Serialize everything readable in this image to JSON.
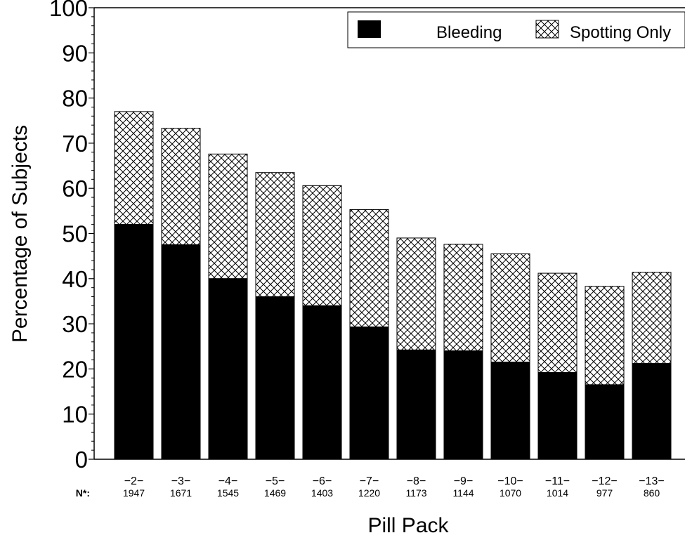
{
  "chart_data": {
    "type": "bar",
    "stacked": true,
    "title": "",
    "xlabel": "Pill Pack",
    "ylabel": "Percentage of Subjects",
    "ylim": [
      0,
      100
    ],
    "yticks": [
      "0",
      "10",
      "20",
      "30",
      "40",
      "50",
      "60",
      "70",
      "80",
      "90",
      "100"
    ],
    "n_label": "N*:",
    "categories": [
      "−2−",
      "−3−",
      "−4−",
      "−5−",
      "−6−",
      "−7−",
      "−8−",
      "−9−",
      "−10−",
      "−11−",
      "−12−",
      "−13−"
    ],
    "n_values": [
      "1947",
      "1671",
      "1545",
      "1469",
      "1403",
      "1220",
      "1173",
      "1144",
      "1070",
      "1014",
      "977",
      "860"
    ],
    "series": [
      {
        "name": "Bleeding",
        "values": [
          52,
          47.5,
          40,
          36,
          34,
          29.3,
          24.2,
          24,
          21.5,
          19.2,
          16.5,
          21.2
        ]
      },
      {
        "name": "Spotting Only",
        "values": [
          25,
          25.8,
          27.6,
          27.5,
          26.6,
          26,
          24.8,
          23.6,
          24,
          22,
          21.8,
          20.2
        ]
      }
    ],
    "legend": {
      "placement": "top-right"
    },
    "grid": false,
    "colors": {
      "bleeding": "#000000",
      "spotting_pattern": "crosshatch",
      "background": "#ffffff"
    }
  }
}
